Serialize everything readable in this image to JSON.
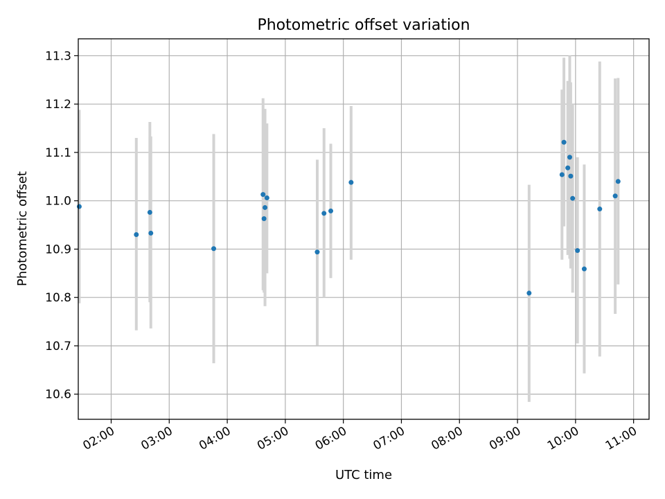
{
  "chart_data": {
    "type": "scatter",
    "title": "Photometric offset variation",
    "xlabel": "UTC time",
    "ylabel": "Photometric offset",
    "x_ticks": [
      "02:00",
      "03:00",
      "04:00",
      "05:00",
      "06:00",
      "07:00",
      "08:00",
      "09:00",
      "10:00",
      "11:00"
    ],
    "y_ticks": [
      "10.6",
      "10.7",
      "10.8",
      "10.9",
      "11.0",
      "11.1",
      "11.2",
      "11.3"
    ],
    "xlim": [
      "01:26",
      "11:16"
    ],
    "ylim": [
      10.548,
      11.335
    ],
    "grid": true,
    "point_color": "#1f77b4",
    "errorbar_color": "#d3d3d3",
    "points": [
      {
        "x": "01:27",
        "y": 10.988,
        "ylow": 10.788,
        "yhigh": 11.188
      },
      {
        "x": "02:26",
        "y": 10.93,
        "ylow": 10.732,
        "yhigh": 11.13
      },
      {
        "x": "02:40",
        "y": 10.976,
        "ylow": 10.79,
        "yhigh": 11.163
      },
      {
        "x": "02:41",
        "y": 10.933,
        "ylow": 10.736,
        "yhigh": 11.133
      },
      {
        "x": "03:46",
        "y": 10.901,
        "ylow": 10.664,
        "yhigh": 11.138
      },
      {
        "x": "04:37",
        "y": 11.013,
        "ylow": 10.815,
        "yhigh": 11.212
      },
      {
        "x": "04:38",
        "y": 10.963,
        "ylow": 10.81,
        "yhigh": 11.176
      },
      {
        "x": "04:39",
        "y": 10.986,
        "ylow": 10.782,
        "yhigh": 11.19
      },
      {
        "x": "04:41",
        "y": 11.006,
        "ylow": 10.85,
        "yhigh": 11.16
      },
      {
        "x": "05:33",
        "y": 10.894,
        "ylow": 10.701,
        "yhigh": 11.085
      },
      {
        "x": "05:40",
        "y": 10.974,
        "ylow": 10.8,
        "yhigh": 11.15
      },
      {
        "x": "05:47",
        "y": 10.979,
        "ylow": 10.84,
        "yhigh": 11.118
      },
      {
        "x": "06:08",
        "y": 11.038,
        "ylow": 10.878,
        "yhigh": 11.196
      },
      {
        "x": "09:12",
        "y": 10.809,
        "ylow": 10.584,
        "yhigh": 11.033
      },
      {
        "x": "09:46",
        "y": 11.054,
        "ylow": 10.878,
        "yhigh": 11.23
      },
      {
        "x": "09:48",
        "y": 11.121,
        "ylow": 10.947,
        "yhigh": 11.296
      },
      {
        "x": "09:52",
        "y": 11.068,
        "ylow": 10.888,
        "yhigh": 11.248
      },
      {
        "x": "09:54",
        "y": 11.09,
        "ylow": 10.88,
        "yhigh": 11.3
      },
      {
        "x": "09:55",
        "y": 11.051,
        "ylow": 10.86,
        "yhigh": 11.245
      },
      {
        "x": "09:57",
        "y": 11.005,
        "ylow": 10.81,
        "yhigh": 11.2
      },
      {
        "x": "10:02",
        "y": 10.897,
        "ylow": 10.705,
        "yhigh": 11.09
      },
      {
        "x": "10:09",
        "y": 10.859,
        "ylow": 10.643,
        "yhigh": 11.075
      },
      {
        "x": "10:25",
        "y": 10.983,
        "ylow": 10.678,
        "yhigh": 11.288
      },
      {
        "x": "10:41",
        "y": 11.01,
        "ylow": 10.766,
        "yhigh": 11.253
      },
      {
        "x": "10:44",
        "y": 11.04,
        "ylow": 10.827,
        "yhigh": 11.254
      }
    ]
  }
}
